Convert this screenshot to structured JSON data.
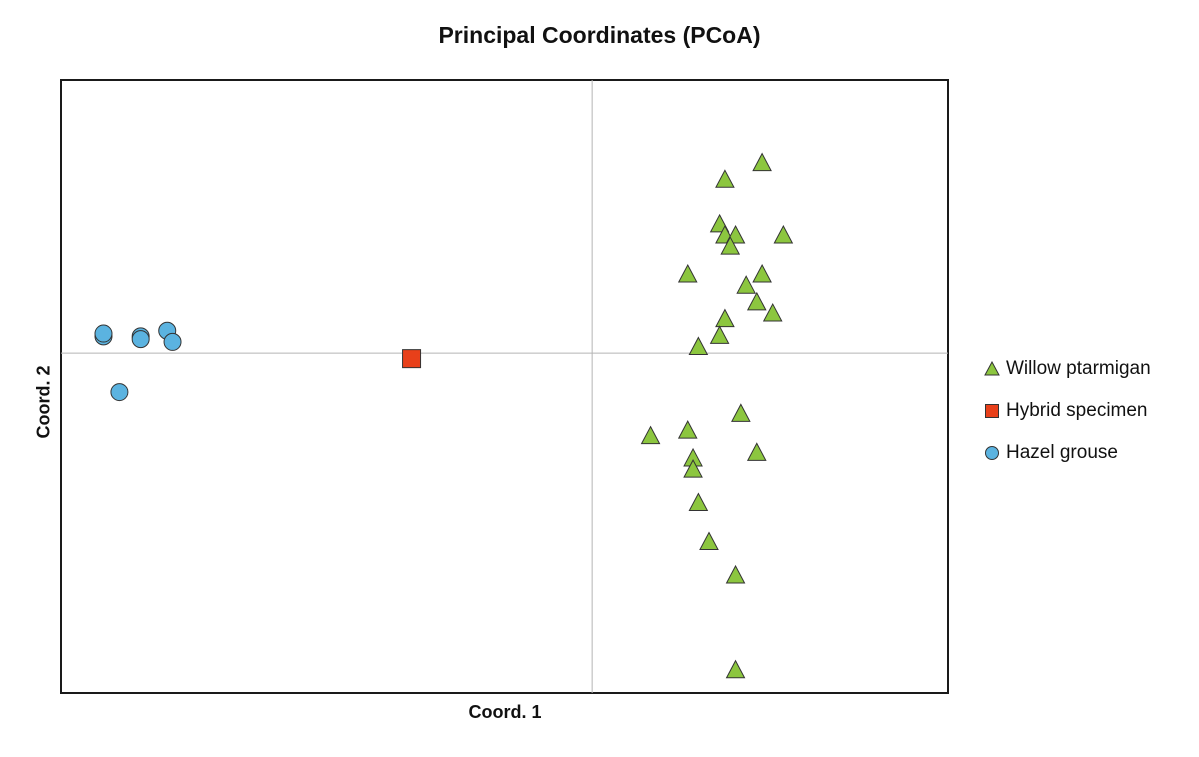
{
  "chart_data": {
    "type": "scatter",
    "title": "Principal Coordinates (PCoA)",
    "xlabel": "Coord. 1",
    "ylabel": "Coord. 2",
    "xlim": [
      -1.0,
      0.67
    ],
    "ylim": [
      -0.61,
      0.49
    ],
    "grid": false,
    "zero_lines": true,
    "legend_position": "right",
    "series": [
      {
        "name": "Willow ptarmigan",
        "marker": "triangle",
        "color": "#8cc63f",
        "x": [
          0.32,
          0.25,
          0.24,
          0.25,
          0.27,
          0.26,
          0.36,
          0.18,
          0.32,
          0.29,
          0.31,
          0.34,
          0.25,
          0.24,
          0.2,
          0.28,
          0.11,
          0.18,
          0.19,
          0.19,
          0.31,
          0.2,
          0.22,
          0.27,
          0.27
        ],
        "y": [
          0.34,
          0.31,
          0.23,
          0.21,
          0.21,
          0.19,
          0.21,
          0.14,
          0.14,
          0.12,
          0.09,
          0.07,
          0.06,
          0.03,
          0.01,
          -0.11,
          -0.15,
          -0.14,
          -0.19,
          -0.21,
          -0.18,
          -0.27,
          -0.34,
          -0.4,
          -0.57
        ]
      },
      {
        "name": "Hybrid specimen",
        "marker": "square",
        "color": "#e8401a",
        "x": [
          -0.34
        ],
        "y": [
          -0.01
        ]
      },
      {
        "name": "Hazel grouse",
        "marker": "circle",
        "color": "#5bb3e0",
        "x": [
          -0.92,
          -0.92,
          -0.85,
          -0.85,
          -0.8,
          -0.79,
          -0.89
        ],
        "y": [
          0.03,
          0.035,
          0.03,
          0.025,
          0.04,
          0.02,
          -0.07
        ]
      }
    ]
  }
}
